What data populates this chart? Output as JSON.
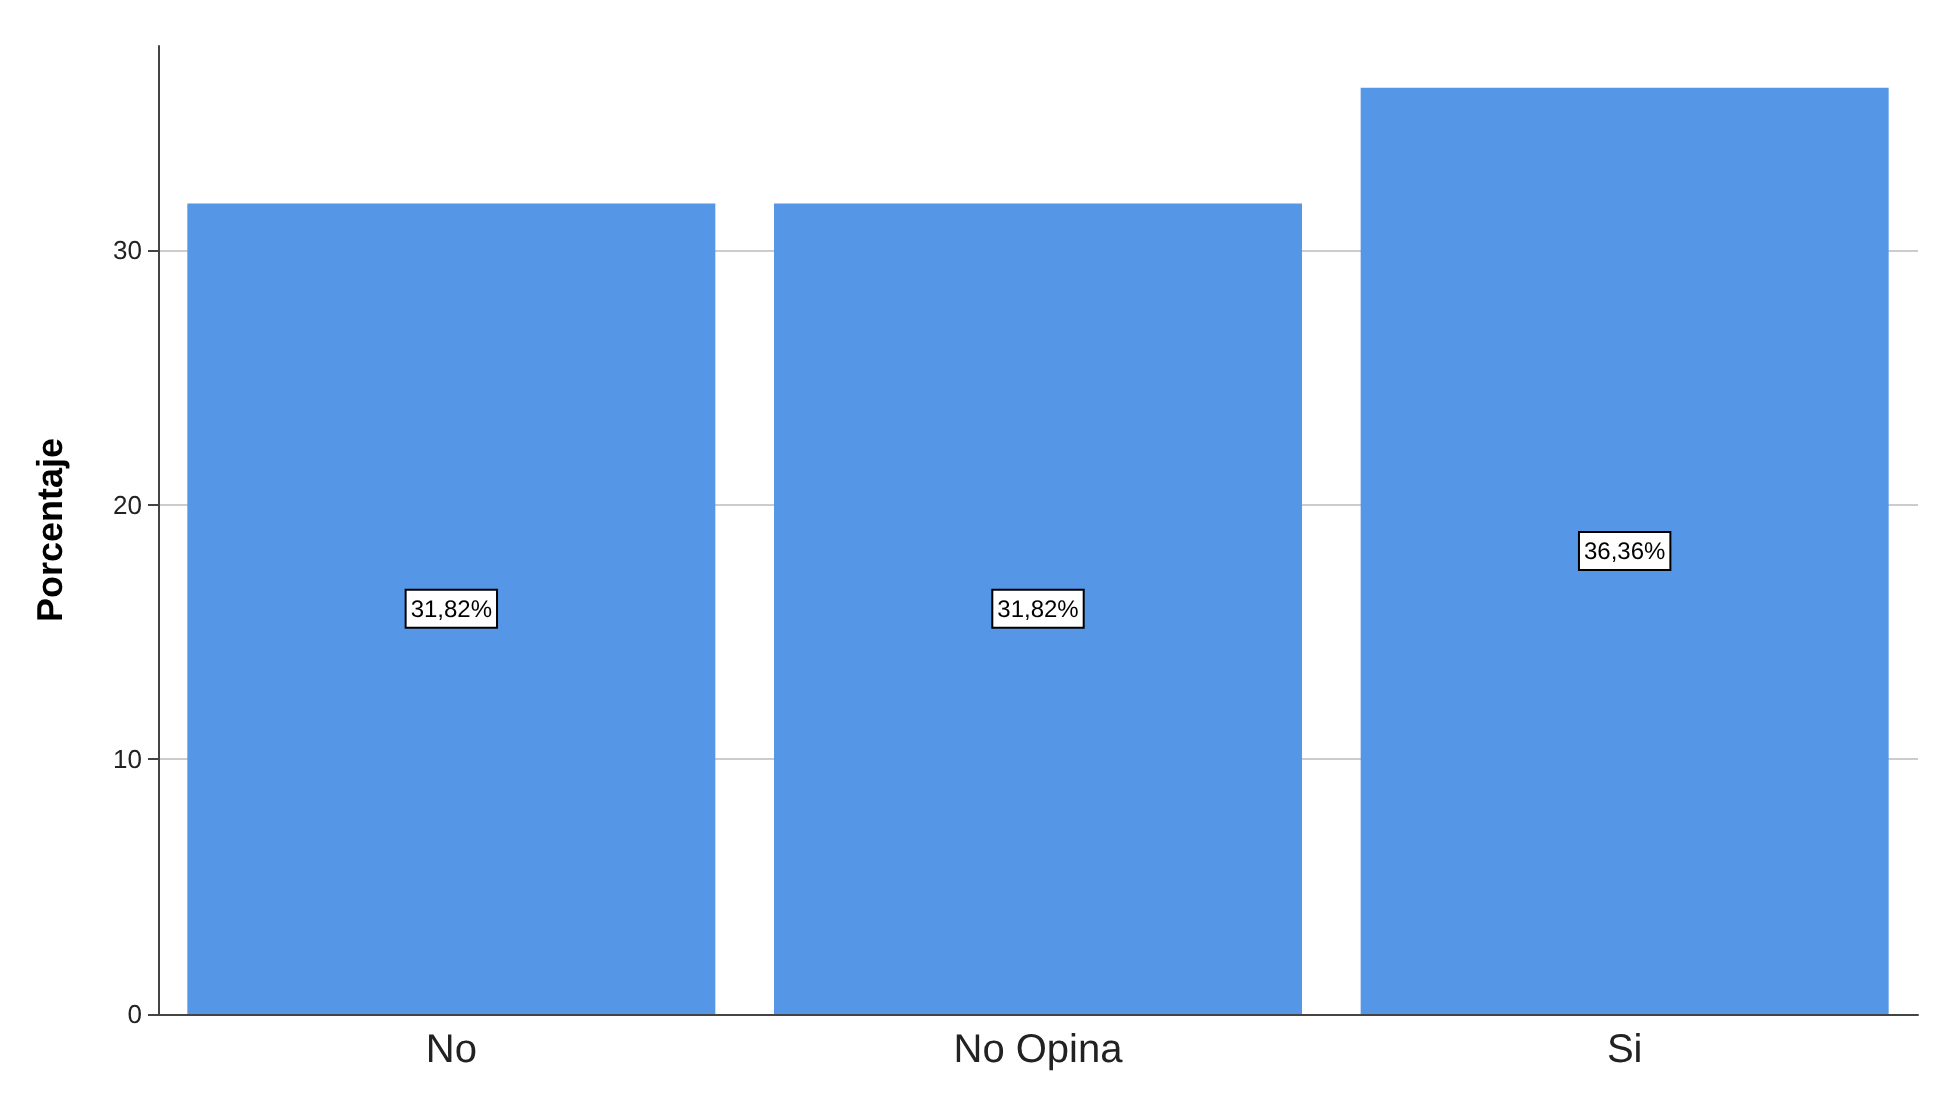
{
  "chart_data": {
    "type": "bar",
    "ylabel": "Porcentaje",
    "categories": [
      "No",
      "No Opina",
      "Si"
    ],
    "values": [
      31.82,
      31.82,
      36.36
    ],
    "color": "#5596e6",
    "value_labels": [
      "31,82%",
      "31,82%",
      "36,36%"
    ],
    "ylim": [
      0,
      38
    ],
    "yticks": [
      0,
      10,
      20,
      30
    ],
    "grid": "y"
  }
}
